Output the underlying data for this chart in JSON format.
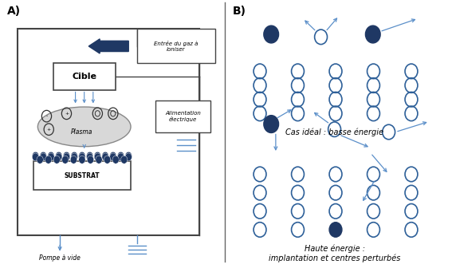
{
  "bg_color": "#ffffff",
  "blue_dark": "#1f3864",
  "blue_mid": "#2e6099",
  "blue_light": "#5b8fc9",
  "gray_plasma": "#d8d8d8",
  "label_A": "A)",
  "label_B": "B)",
  "text_cible": "Cible",
  "text_plasma": "Plasma",
  "text_substrat": "SUBSTRAT",
  "text_gaz": "Entrée du gaz à\nioniser",
  "text_alim": "Alimentation\nélectrique",
  "text_pompe": "Pompe à vide",
  "text_basse": "Cas idéal : basse énergie",
  "text_haute": "Haute énergie :\nimplantation et centres perturbés"
}
